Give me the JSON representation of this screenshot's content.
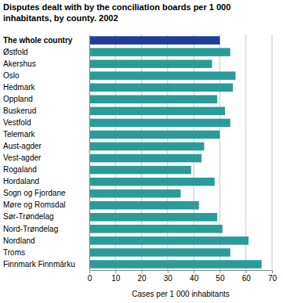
{
  "chart_data": {
    "type": "bar",
    "orientation": "horizontal",
    "title": "Disputes dealt with by the conciliation boards per 1 000 inhabitants, by county. 2002",
    "x_label": "Cases per 1 000 inhabitants",
    "categories": [
      "The whole country",
      "Østfold",
      "Akershus",
      "Oslo",
      "Hedmark",
      "Oppland",
      "Buskerud",
      "Vestfold",
      "Telemark",
      "Aust-agder",
      "Vest-agder",
      "Rogaland",
      "Hordaland",
      "Sogn og Fjordane",
      "Møre og Romsdal",
      "Sør-Trøndelag",
      "Nord-Trøndelag",
      "Nordland",
      "Troms",
      "Finnmark Finnmárku"
    ],
    "values": [
      50,
      54,
      47,
      56,
      55,
      49,
      52,
      54,
      50,
      44,
      43,
      39,
      48,
      35,
      42,
      49,
      51,
      61,
      54,
      66
    ],
    "colors": [
      "#1f3c9c",
      "#2a9c98",
      "#2a9c98",
      "#2a9c98",
      "#2a9c98",
      "#2a9c98",
      "#2a9c98",
      "#2a9c98",
      "#2a9c98",
      "#2a9c98",
      "#2a9c98",
      "#2a9c98",
      "#2a9c98",
      "#2a9c98",
      "#2a9c98",
      "#2a9c98",
      "#2a9c98",
      "#2a9c98",
      "#2a9c98",
      "#2a9c98"
    ],
    "xlim": [
      0,
      70
    ],
    "xticks": [
      0,
      10,
      20,
      30,
      40,
      50,
      60,
      70
    ],
    "grid": true
  }
}
